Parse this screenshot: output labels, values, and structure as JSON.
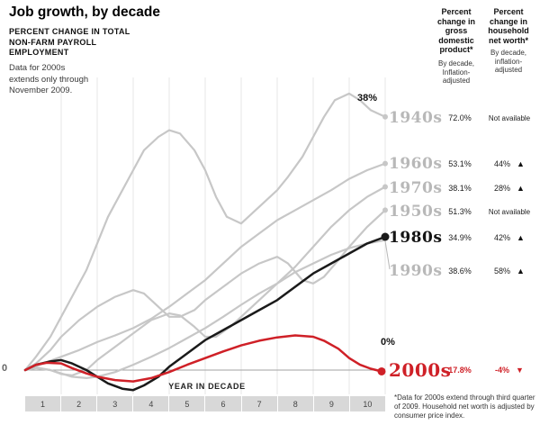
{
  "header": {
    "title": "Job growth, by decade",
    "subtitle_lines": [
      "PERCENT CHANGE IN TOTAL",
      "NON-FARM PAYROLL",
      "EMPLOYMENT"
    ],
    "note_lines": [
      "Data for 2000s",
      "extends only through",
      "November 2009."
    ]
  },
  "axis": {
    "zero_label": "0",
    "x_title": "YEAR IN DECADE",
    "year_labels": [
      "1",
      "2",
      "3",
      "4",
      "5",
      "6",
      "7",
      "8",
      "9",
      "10"
    ]
  },
  "annotations": {
    "peak": "38%",
    "end": "0%"
  },
  "right_panel": {
    "col1_header_lines": [
      "Percent",
      "change in",
      "gross",
      "domestic",
      "product*"
    ],
    "col1_sub_lines": [
      "By decade,",
      "Inflation-",
      "adjusted"
    ],
    "col2_header_lines": [
      "Percent",
      "change in",
      "household",
      "net worth*"
    ],
    "col2_sub_lines": [
      "By decade,",
      "inflation-",
      "adjusted"
    ],
    "rows": [
      {
        "decade": "1940s",
        "gdp": "72.0%",
        "networth": "Not available",
        "trend": null,
        "style": "gray"
      },
      {
        "decade": "1960s",
        "gdp": "53.1%",
        "networth": "44%",
        "trend": "up",
        "style": "gray"
      },
      {
        "decade": "1970s",
        "gdp": "38.1%",
        "networth": "28%",
        "trend": "up",
        "style": "gray"
      },
      {
        "decade": "1950s",
        "gdp": "51.3%",
        "networth": "Not available",
        "trend": null,
        "style": "gray"
      },
      {
        "decade": "1980s",
        "gdp": "34.9%",
        "networth": "42%",
        "trend": "up",
        "style": "black"
      },
      {
        "decade": "1990s",
        "gdp": "38.6%",
        "networth": "58%",
        "trend": "up",
        "style": "gray"
      },
      {
        "decade": "2000s",
        "gdp": "17.8%",
        "networth": "-4%",
        "trend": "down",
        "style": "red"
      }
    ]
  },
  "footnote": "*Data for 2000s extend through third quarter of 2009. Household net worth is adjusted by consumer price index.",
  "colors": {
    "highlight_red": "#cf2027",
    "highlight_black": "#1a1a1a",
    "muted_gray": "#c7c7c7"
  },
  "chart_data": {
    "type": "line",
    "title": "Job growth, by decade",
    "ylabel": "Percent change in total non-farm payroll employment",
    "xlabel": "YEAR IN DECADE",
    "x_range": [
      0,
      10
    ],
    "y_range_percent": [
      -5,
      43
    ],
    "grid": "vertical-only",
    "end_value_labels": {
      "1940s": "38%",
      "2000s": "0%"
    },
    "series": [
      {
        "name": "1940s",
        "color": "#c7c7c7",
        "width": 2.2,
        "end_dot": true,
        "dot_r": 3,
        "points": [
          [
            0,
            0
          ],
          [
            0.3,
            2
          ],
          [
            0.7,
            5
          ],
          [
            1,
            8
          ],
          [
            1.3,
            11
          ],
          [
            1.7,
            15
          ],
          [
            2,
            19
          ],
          [
            2.3,
            23
          ],
          [
            2.7,
            27
          ],
          [
            3,
            30
          ],
          [
            3.3,
            33
          ],
          [
            3.7,
            35
          ],
          [
            4,
            36
          ],
          [
            4.3,
            35.5
          ],
          [
            4.7,
            33
          ],
          [
            5,
            30
          ],
          [
            5.3,
            26
          ],
          [
            5.6,
            23
          ],
          [
            6,
            22
          ],
          [
            6.3,
            23.5
          ],
          [
            6.7,
            25.5
          ],
          [
            7,
            27
          ],
          [
            7.3,
            29
          ],
          [
            7.7,
            32
          ],
          [
            8,
            35
          ],
          [
            8.3,
            38
          ],
          [
            8.6,
            40.5
          ],
          [
            9,
            41.5
          ],
          [
            9.3,
            40.5
          ],
          [
            9.6,
            39
          ],
          [
            10,
            38
          ]
        ]
      },
      {
        "name": "1950s",
        "color": "#c7c7c7",
        "width": 2.2,
        "end_dot": true,
        "dot_r": 3,
        "points": [
          [
            0,
            0
          ],
          [
            0.3,
            1
          ],
          [
            0.7,
            3
          ],
          [
            1,
            5
          ],
          [
            1.5,
            7.5
          ],
          [
            2,
            9.5
          ],
          [
            2.5,
            11
          ],
          [
            3,
            12
          ],
          [
            3.3,
            11.5
          ],
          [
            3.7,
            9.5
          ],
          [
            4,
            8
          ],
          [
            4.3,
            8
          ],
          [
            4.7,
            9
          ],
          [
            5,
            10.5
          ],
          [
            5.5,
            12.5
          ],
          [
            6,
            14.5
          ],
          [
            6.5,
            16
          ],
          [
            7,
            17
          ],
          [
            7.3,
            16
          ],
          [
            7.7,
            13.5
          ],
          [
            8,
            13
          ],
          [
            8.3,
            14
          ],
          [
            8.7,
            16.5
          ],
          [
            9,
            18.5
          ],
          [
            9.5,
            21.5
          ],
          [
            10,
            24
          ]
        ]
      },
      {
        "name": "1960s",
        "color": "#c7c7c7",
        "width": 2.2,
        "end_dot": true,
        "dot_r": 3,
        "points": [
          [
            0,
            0
          ],
          [
            0.5,
            1
          ],
          [
            1,
            2
          ],
          [
            1.5,
            3
          ],
          [
            2,
            4.2
          ],
          [
            2.5,
            5.2
          ],
          [
            3,
            6.3
          ],
          [
            3.5,
            7.7
          ],
          [
            4,
            9.5
          ],
          [
            4.5,
            11.5
          ],
          [
            5,
            13.5
          ],
          [
            5.5,
            16
          ],
          [
            6,
            18.5
          ],
          [
            6.5,
            20.5
          ],
          [
            7,
            22.5
          ],
          [
            7.5,
            24
          ],
          [
            8,
            25.5
          ],
          [
            8.5,
            27
          ],
          [
            9,
            28.7
          ],
          [
            9.5,
            30
          ],
          [
            10,
            31
          ]
        ]
      },
      {
        "name": "1970s",
        "color": "#c7c7c7",
        "width": 2.2,
        "end_dot": true,
        "dot_r": 3,
        "points": [
          [
            0,
            0
          ],
          [
            0.3,
            0.4
          ],
          [
            0.7,
            0
          ],
          [
            1,
            -0.6
          ],
          [
            1.3,
            -0.8
          ],
          [
            1.7,
            0
          ],
          [
            2,
            1.5
          ],
          [
            2.5,
            3.5
          ],
          [
            3,
            5.5
          ],
          [
            3.5,
            7.5
          ],
          [
            4,
            8.5
          ],
          [
            4.3,
            8.2
          ],
          [
            4.7,
            6.5
          ],
          [
            5,
            5
          ],
          [
            5.3,
            5
          ],
          [
            5.7,
            6.5
          ],
          [
            6,
            8
          ],
          [
            6.5,
            10.5
          ],
          [
            7,
            13
          ],
          [
            7.5,
            15.5
          ],
          [
            8,
            18.5
          ],
          [
            8.5,
            21.5
          ],
          [
            9,
            24
          ],
          [
            9.5,
            26
          ],
          [
            10,
            27.5
          ]
        ]
      },
      {
        "name": "1990s",
        "color": "#c7c7c7",
        "width": 2.2,
        "end_dot": false,
        "dot_r": 3,
        "points": [
          [
            0,
            0
          ],
          [
            0.3,
            0.3
          ],
          [
            0.7,
            0
          ],
          [
            1,
            -0.5
          ],
          [
            1.3,
            -1
          ],
          [
            1.7,
            -1.2
          ],
          [
            2,
            -1
          ],
          [
            2.5,
            -0.3
          ],
          [
            3,
            0.8
          ],
          [
            3.5,
            2
          ],
          [
            4,
            3.3
          ],
          [
            4.5,
            4.8
          ],
          [
            5,
            6.3
          ],
          [
            5.5,
            8
          ],
          [
            6,
            9.8
          ],
          [
            6.5,
            11.5
          ],
          [
            7,
            13
          ],
          [
            7.5,
            14.7
          ],
          [
            8,
            16
          ],
          [
            8.5,
            17.3
          ],
          [
            9,
            18.3
          ],
          [
            9.5,
            19
          ],
          [
            10,
            19.5
          ]
        ]
      },
      {
        "name": "1980s",
        "color": "#1a1a1a",
        "width": 2.5,
        "end_dot": true,
        "dot_r": 4.5,
        "points": [
          [
            0,
            0
          ],
          [
            0.3,
            0.8
          ],
          [
            0.7,
            1.3
          ],
          [
            1,
            1.5
          ],
          [
            1.3,
            1
          ],
          [
            1.7,
            0
          ],
          [
            2,
            -1
          ],
          [
            2.3,
            -2
          ],
          [
            2.7,
            -2.8
          ],
          [
            3,
            -3
          ],
          [
            3.3,
            -2.3
          ],
          [
            3.7,
            -1
          ],
          [
            4,
            0.5
          ],
          [
            4.5,
            2.5
          ],
          [
            5,
            4.5
          ],
          [
            5.5,
            6
          ],
          [
            6,
            7.5
          ],
          [
            6.5,
            9
          ],
          [
            7,
            10.5
          ],
          [
            7.5,
            12.5
          ],
          [
            8,
            14.5
          ],
          [
            8.5,
            16
          ],
          [
            9,
            17.5
          ],
          [
            9.5,
            19
          ],
          [
            10,
            20
          ]
        ]
      },
      {
        "name": "2000s",
        "color": "#cf2027",
        "width": 2.5,
        "end_dot": true,
        "dot_r": 4.5,
        "points": [
          [
            0,
            0
          ],
          [
            0.3,
            0.8
          ],
          [
            0.6,
            1.1
          ],
          [
            1,
            1
          ],
          [
            1.3,
            0.3
          ],
          [
            1.7,
            -0.5
          ],
          [
            2,
            -1
          ],
          [
            2.5,
            -1.5
          ],
          [
            3,
            -1.7
          ],
          [
            3.5,
            -1.2
          ],
          [
            4,
            -0.3
          ],
          [
            4.5,
            0.8
          ],
          [
            5,
            1.8
          ],
          [
            5.5,
            2.8
          ],
          [
            6,
            3.7
          ],
          [
            6.5,
            4.4
          ],
          [
            7,
            4.9
          ],
          [
            7.5,
            5.2
          ],
          [
            8,
            5
          ],
          [
            8.3,
            4.4
          ],
          [
            8.7,
            3.2
          ],
          [
            9,
            1.8
          ],
          [
            9.3,
            0.8
          ],
          [
            9.6,
            0.2
          ],
          [
            9.9,
            -0.2
          ]
        ]
      }
    ]
  }
}
